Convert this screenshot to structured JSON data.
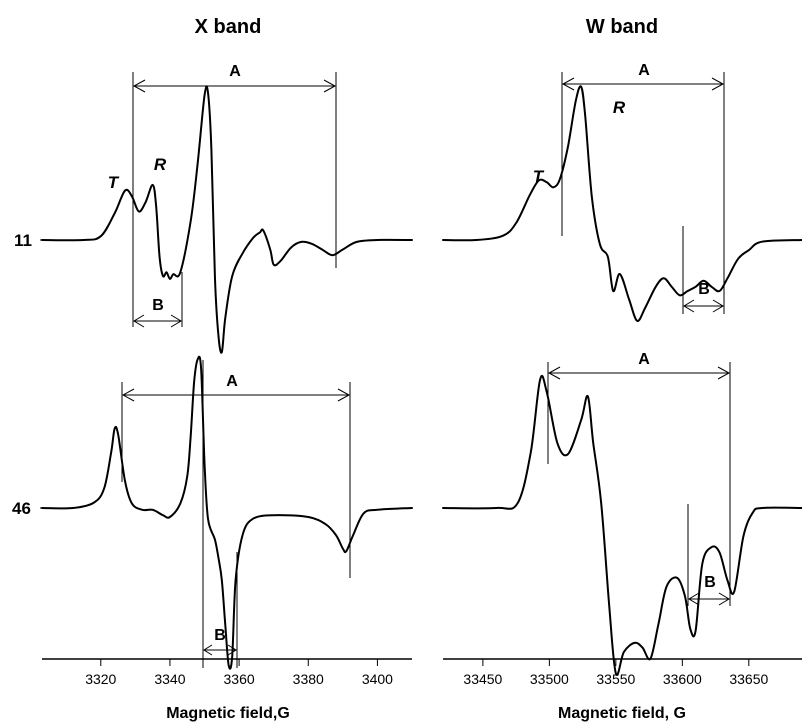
{
  "chart_data": [
    {
      "type": "line",
      "title": "X band",
      "xlabel": "Magnetic field,G",
      "ylabel": "",
      "xlim": [
        3303,
        3410
      ],
      "x_ticks": [
        3320,
        3340,
        3360,
        3380,
        3400
      ],
      "grid": false,
      "row_labels": [
        "11",
        "46"
      ],
      "series": [
        {
          "name": "11",
          "peak_labels": [
            "T",
            "R"
          ],
          "interval_labels": {
            "A": "A",
            "B": "B"
          },
          "points": [
            [
              3303,
              0
            ],
            [
              3315,
              0
            ],
            [
              3320,
              0.04
            ],
            [
              3324,
              0.28
            ],
            [
              3327,
              0.52
            ],
            [
              3329,
              0.46
            ],
            [
              3331,
              0.3
            ],
            [
              3333,
              0.4
            ],
            [
              3335,
              0.58
            ],
            [
              3336,
              0.36
            ],
            [
              3337,
              -0.18
            ],
            [
              3338,
              -0.38
            ],
            [
              3339,
              -0.34
            ],
            [
              3340,
              -0.41
            ],
            [
              3341,
              -0.36
            ],
            [
              3343,
              -0.34
            ],
            [
              3346,
              0.2
            ],
            [
              3348,
              0.8
            ],
            [
              3350,
              1.52
            ],
            [
              3351,
              1.55
            ],
            [
              3352,
              0.95
            ],
            [
              3353,
              -0.38
            ],
            [
              3354,
              -1.0
            ],
            [
              3355,
              -1.18
            ],
            [
              3356,
              -0.82
            ],
            [
              3358,
              -0.38
            ],
            [
              3361,
              -0.14
            ],
            [
              3364,
              0.02
            ],
            [
              3366,
              0.08
            ],
            [
              3367,
              0.1
            ],
            [
              3369,
              -0.1
            ],
            [
              3370,
              -0.26
            ],
            [
              3372,
              -0.22
            ],
            [
              3375,
              -0.08
            ],
            [
              3378,
              -0.02
            ],
            [
              3381,
              -0.04
            ],
            [
              3384,
              -0.1
            ],
            [
              3387,
              -0.16
            ],
            [
              3390,
              -0.1
            ],
            [
              3394,
              -0.02
            ],
            [
              3400,
              0
            ],
            [
              3410,
              0
            ]
          ]
        },
        {
          "name": "46",
          "interval_labels": {
            "A": "A",
            "B": "B"
          },
          "points": [
            [
              3303,
              0
            ],
            [
              3312,
              0
            ],
            [
              3318,
              0.06
            ],
            [
              3321,
              0.22
            ],
            [
              3323,
              0.62
            ],
            [
              3324,
              0.88
            ],
            [
              3325,
              0.82
            ],
            [
              3327,
              0.3
            ],
            [
              3329,
              0.05
            ],
            [
              3332,
              -0.02
            ],
            [
              3335,
              -0.02
            ],
            [
              3338,
              -0.08
            ],
            [
              3340,
              -0.1
            ],
            [
              3343,
              0.05
            ],
            [
              3345,
              0.35
            ],
            [
              3346,
              0.8
            ],
            [
              3347,
              1.4
            ],
            [
              3348,
              1.65
            ],
            [
              3349,
              1.55
            ],
            [
              3350,
              0.5
            ],
            [
              3351,
              -0.12
            ],
            [
              3353,
              -0.35
            ],
            [
              3354,
              -0.55
            ],
            [
              3355,
              -0.8
            ],
            [
              3356,
              -1.3
            ],
            [
              3357,
              -1.75
            ],
            [
              3358,
              -1.65
            ],
            [
              3359,
              -0.8
            ],
            [
              3361,
              -0.3
            ],
            [
              3364,
              -0.12
            ],
            [
              3370,
              -0.08
            ],
            [
              3380,
              -0.1
            ],
            [
              3385,
              -0.18
            ],
            [
              3388,
              -0.3
            ],
            [
              3390,
              -0.45
            ],
            [
              3391,
              -0.48
            ],
            [
              3393,
              -0.3
            ],
            [
              3396,
              -0.06
            ],
            [
              3400,
              -0.02
            ],
            [
              3410,
              0
            ]
          ]
        }
      ]
    },
    {
      "type": "line",
      "title": "W band",
      "xlabel": "Magnetic field, G",
      "ylabel": "",
      "xlim": [
        3342,
        3369
      ],
      "x_ticks_display": [
        "33450",
        "33500",
        "33550",
        "33600",
        "33650"
      ],
      "x_ticks": [
        3345,
        3350,
        3355,
        3360,
        3365
      ],
      "grid": false,
      "series": [
        {
          "name": "11",
          "peak_labels": [
            "T",
            "R"
          ],
          "interval_labels": {
            "A": "A",
            "B": "B"
          },
          "points": [
            [
              3342,
              0
            ],
            [
              3344.5,
              0
            ],
            [
              3346.5,
              0.05
            ],
            [
              3347.5,
              0.2
            ],
            [
              3348.5,
              0.52
            ],
            [
              3349.2,
              0.7
            ],
            [
              3349.8,
              0.68
            ],
            [
              3350.3,
              0.62
            ],
            [
              3350.8,
              0.72
            ],
            [
              3351.4,
              1.1
            ],
            [
              3352,
              1.65
            ],
            [
              3352.4,
              1.8
            ],
            [
              3352.7,
              1.45
            ],
            [
              3353.2,
              0.5
            ],
            [
              3353.8,
              -0.05
            ],
            [
              3354.4,
              -0.2
            ],
            [
              3354.8,
              -0.6
            ],
            [
              3355.3,
              -0.4
            ],
            [
              3356,
              -0.7
            ],
            [
              3356.6,
              -0.95
            ],
            [
              3357.2,
              -0.8
            ],
            [
              3358,
              -0.55
            ],
            [
              3358.6,
              -0.45
            ],
            [
              3359.2,
              -0.55
            ],
            [
              3359.8,
              -0.65
            ],
            [
              3360.4,
              -0.6
            ],
            [
              3361,
              -0.55
            ],
            [
              3361.6,
              -0.48
            ],
            [
              3362.2,
              -0.55
            ],
            [
              3362.8,
              -0.6
            ],
            [
              3363.4,
              -0.45
            ],
            [
              3364.2,
              -0.22
            ],
            [
              3365,
              -0.12
            ],
            [
              3366,
              -0.02
            ],
            [
              3369,
              0
            ]
          ]
        },
        {
          "name": "46",
          "interval_labels": {
            "A": "A",
            "B": "B"
          },
          "points": [
            [
              3342,
              0
            ],
            [
              3346,
              0
            ],
            [
              3347.6,
              0.05
            ],
            [
              3348.6,
              0.6
            ],
            [
              3349.3,
              1.38
            ],
            [
              3349.8,
              1.25
            ],
            [
              3350.6,
              0.7
            ],
            [
              3351.4,
              0.58
            ],
            [
              3352.4,
              0.95
            ],
            [
              3352.9,
              1.2
            ],
            [
              3353.3,
              0.7
            ],
            [
              3353.9,
              0.05
            ],
            [
              3354.5,
              -1.05
            ],
            [
              3355,
              -1.78
            ],
            [
              3355.6,
              -1.55
            ],
            [
              3356.4,
              -1.45
            ],
            [
              3357,
              -1.5
            ],
            [
              3357.6,
              -1.62
            ],
            [
              3358.2,
              -1.25
            ],
            [
              3358.8,
              -0.85
            ],
            [
              3359.6,
              -0.75
            ],
            [
              3360.2,
              -0.95
            ],
            [
              3360.6,
              -1.3
            ],
            [
              3361,
              -1.32
            ],
            [
              3361.5,
              -0.6
            ],
            [
              3362.2,
              -0.42
            ],
            [
              3362.8,
              -0.48
            ],
            [
              3363.4,
              -0.78
            ],
            [
              3363.9,
              -0.9
            ],
            [
              3364.6,
              -0.3
            ],
            [
              3365.3,
              -0.05
            ],
            [
              3366,
              0
            ],
            [
              3369,
              0
            ]
          ]
        }
      ]
    }
  ]
}
